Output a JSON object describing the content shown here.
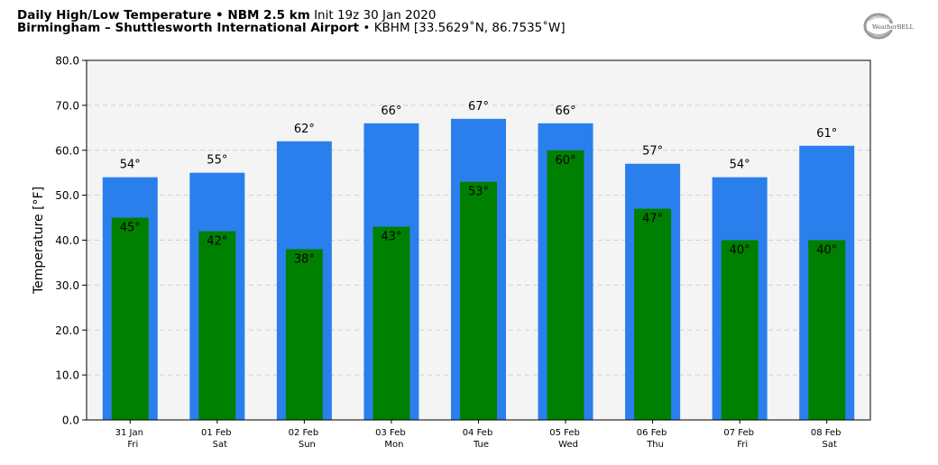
{
  "header": {
    "title": "Daily High/Low Temperature",
    "sep1": " • ",
    "model": "NBM 2.5 km",
    "init": " Init 19z 30 Jan 2020",
    "location": "Birmingham – Shuttlesworth International Airport",
    "sep2": " • ",
    "station": "KBHM [33.5629˚N, 86.7535˚W]"
  },
  "logo": {
    "text": "WeatherBELL",
    "icon": "weatherbell-logo-icon"
  },
  "chart_data": {
    "type": "bar",
    "title": "Daily High/Low Temperature",
    "ylabel": "Temperature [°F]",
    "xlabel": "",
    "ylim": [
      0,
      80
    ],
    "yticks": [
      "0.0",
      "10.0",
      "20.0",
      "30.0",
      "40.0",
      "50.0",
      "60.0",
      "70.0",
      "80.0"
    ],
    "grid": true,
    "categories": [
      {
        "date": "31 Jan",
        "day": "Fri"
      },
      {
        "date": "01 Feb",
        "day": "Sat"
      },
      {
        "date": "02 Feb",
        "day": "Sun"
      },
      {
        "date": "03 Feb",
        "day": "Mon"
      },
      {
        "date": "04 Feb",
        "day": "Tue"
      },
      {
        "date": "05 Feb",
        "day": "Wed"
      },
      {
        "date": "06 Feb",
        "day": "Thu"
      },
      {
        "date": "07 Feb",
        "day": "Fri"
      },
      {
        "date": "08 Feb",
        "day": "Sat"
      }
    ],
    "series": [
      {
        "key": "high",
        "color": "#2b7fed",
        "values": [
          54,
          55,
          62,
          66,
          67,
          66,
          57,
          54,
          61
        ]
      },
      {
        "key": "low",
        "color": "#008000",
        "values": [
          45,
          42,
          38,
          43,
          53,
          60,
          47,
          40,
          40
        ]
      }
    ],
    "value_suffix": "°",
    "plot_background": "#f4f4f4",
    "grid_color": "#cfcfcf"
  }
}
